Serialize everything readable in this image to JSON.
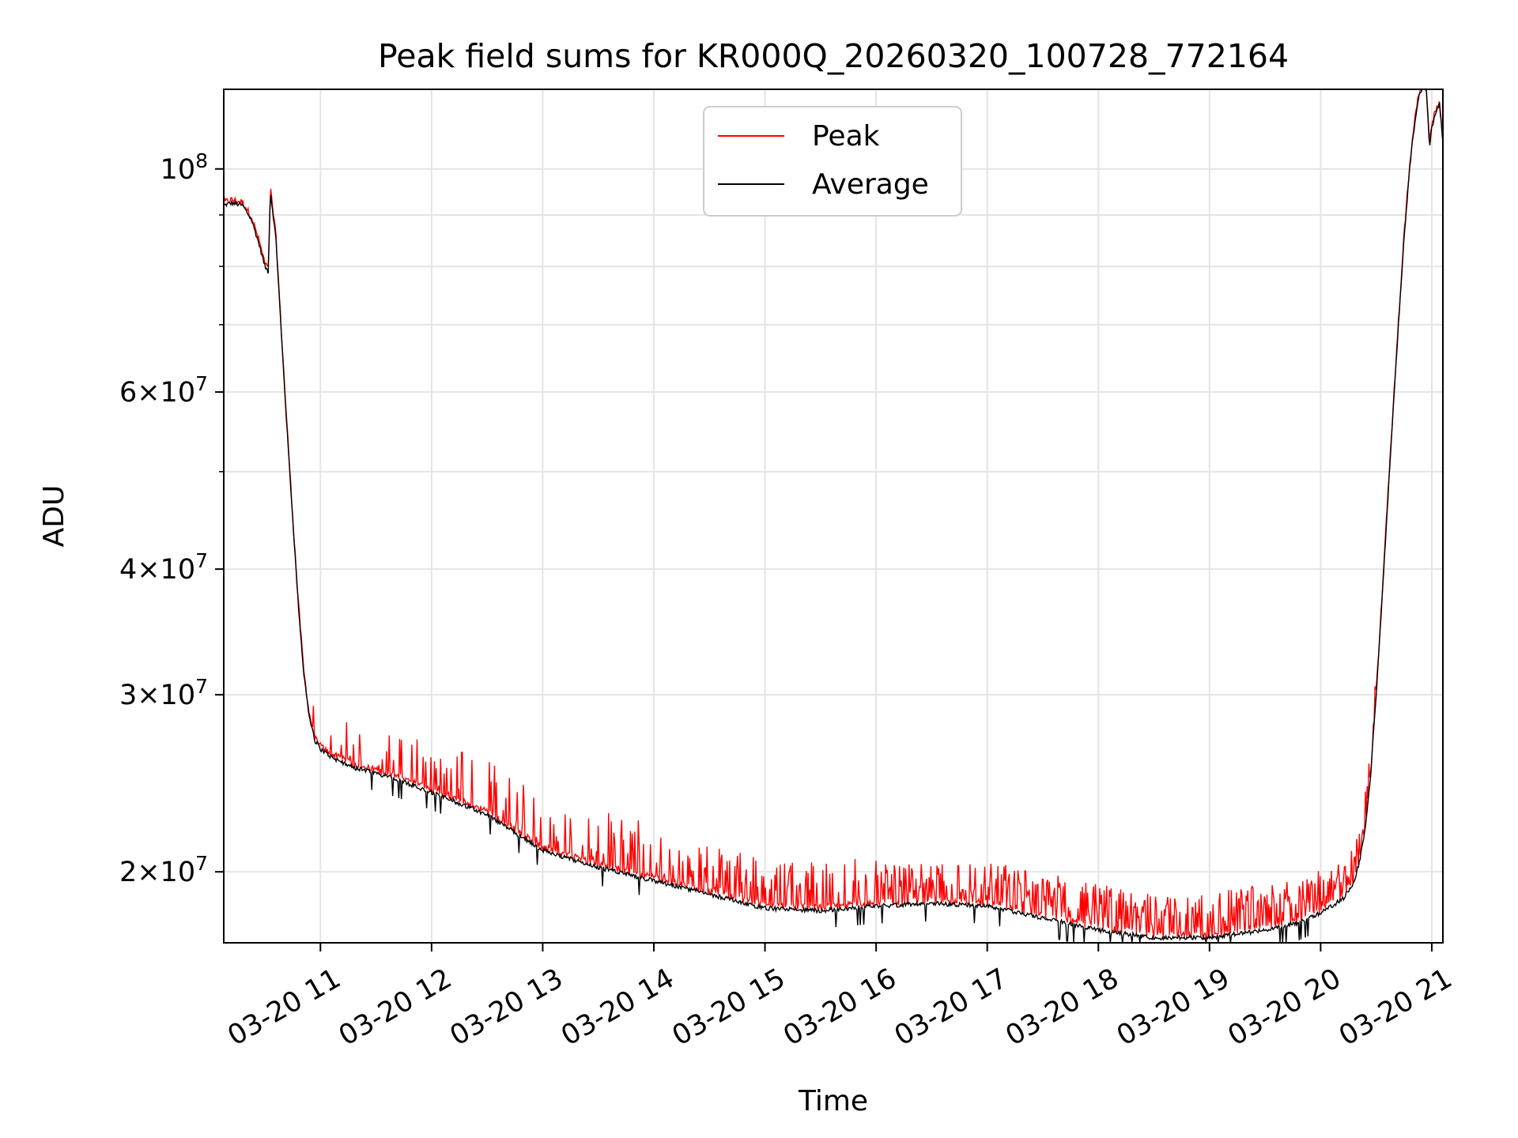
{
  "chart_data": {
    "type": "line",
    "title": "Peak field sums for KR000Q_20260320_100728_772164",
    "xlabel": "Time",
    "ylabel": "ADU",
    "yscale": "log",
    "xlim": [
      10.13,
      21.1
    ],
    "ylim": [
      17000000,
      120000000
    ],
    "grid": true,
    "legend_position": "upper-center",
    "x_ticks": [
      {
        "value": 11,
        "label": "03-20 11"
      },
      {
        "value": 12,
        "label": "03-20 12"
      },
      {
        "value": 13,
        "label": "03-20 13"
      },
      {
        "value": 14,
        "label": "03-20 14"
      },
      {
        "value": 15,
        "label": "03-20 15"
      },
      {
        "value": 16,
        "label": "03-20 16"
      },
      {
        "value": 17,
        "label": "03-20 17"
      },
      {
        "value": 18,
        "label": "03-20 18"
      },
      {
        "value": 19,
        "label": "03-20 19"
      },
      {
        "value": 20,
        "label": "03-20 20"
      },
      {
        "value": 21,
        "label": "03-20 21"
      }
    ],
    "y_ticks": [
      {
        "value": 20000000,
        "mant": "2",
        "exp": "7"
      },
      {
        "value": 30000000,
        "mant": "3",
        "exp": "7"
      },
      {
        "value": 40000000,
        "mant": "4",
        "exp": "7"
      },
      {
        "value": 60000000,
        "mant": "6",
        "exp": "7"
      },
      {
        "value": 100000000,
        "mant": "",
        "exp": "8"
      }
    ],
    "y_minor_ticks": [
      50000000,
      70000000,
      80000000,
      90000000
    ],
    "series": [
      {
        "name": "Peak",
        "color": "#ff0000",
        "noise_spikes": true
      },
      {
        "name": "Average",
        "color": "#000000",
        "x": [
          10.13,
          10.2,
          10.3,
          10.38,
          10.45,
          10.5,
          10.53,
          10.55,
          10.6,
          10.65,
          10.7,
          10.75,
          10.8,
          10.85,
          10.9,
          10.95,
          11.0,
          11.1,
          11.3,
          11.6,
          12.0,
          12.5,
          13.0,
          13.5,
          14.0,
          14.5,
          15.0,
          15.5,
          16.0,
          16.5,
          17.0,
          17.5,
          18.0,
          18.5,
          19.0,
          19.5,
          19.8,
          20.0,
          20.2,
          20.3,
          20.35,
          20.4,
          20.45,
          20.5,
          20.55,
          20.6,
          20.65,
          20.7,
          20.75,
          20.8,
          20.85,
          20.88,
          20.9,
          20.95,
          20.98,
          21.0,
          21.03,
          21.07,
          21.1
        ],
        "y": [
          92000000,
          92500000,
          92000000,
          89000000,
          84000000,
          80000000,
          79000000,
          95000000,
          85000000,
          68000000,
          55000000,
          45000000,
          37000000,
          31500000,
          28500000,
          27000000,
          26500000,
          26000000,
          25400000,
          24900000,
          24000000,
          22800000,
          21000000,
          20200000,
          19600000,
          19000000,
          18400000,
          18300000,
          18500000,
          18600000,
          18500000,
          18000000,
          17500000,
          17200000,
          17200000,
          17500000,
          17800000,
          18200000,
          18800000,
          19500000,
          20500000,
          22000000,
          25000000,
          30000000,
          37000000,
          46000000,
          57000000,
          70000000,
          85000000,
          100000000,
          112000000,
          118000000,
          119500000,
          120500000,
          105000000,
          110000000,
          113000000,
          116000000,
          106000000
        ]
      }
    ]
  }
}
